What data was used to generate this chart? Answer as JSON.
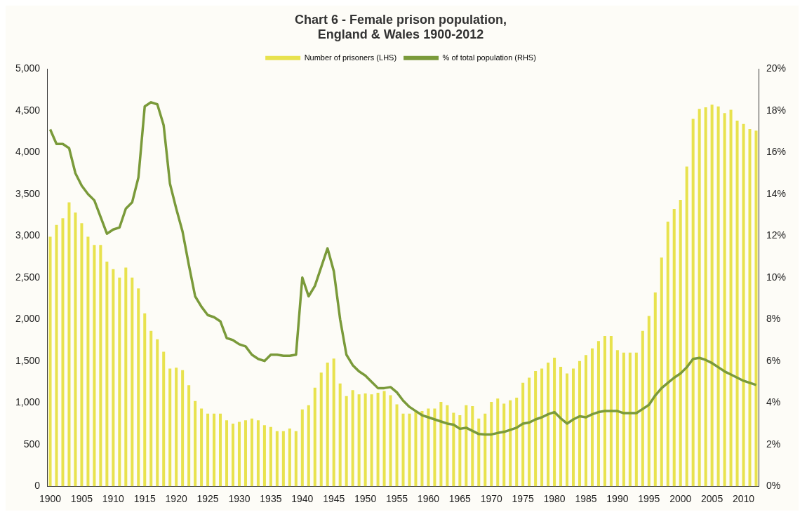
{
  "chart_data": {
    "type": "bar",
    "title": "Chart 6 - Female prison population,\nEngland & Wales 1900-2012",
    "categories": [
      "1900",
      null,
      null,
      null,
      null,
      "1905",
      null,
      null,
      null,
      null,
      "1910",
      null,
      null,
      null,
      null,
      "1915",
      null,
      null,
      null,
      null,
      "1920",
      null,
      null,
      null,
      null,
      "1925",
      null,
      null,
      null,
      null,
      "1930",
      null,
      null,
      null,
      null,
      "1935",
      null,
      null,
      null,
      null,
      "1940",
      null,
      null,
      null,
      null,
      "1945",
      null,
      null,
      null,
      null,
      "1950",
      null,
      null,
      null,
      null,
      "1955",
      null,
      null,
      null,
      null,
      "1960",
      null,
      null,
      null,
      null,
      "1965",
      null,
      null,
      null,
      null,
      "1970",
      null,
      null,
      null,
      null,
      "1975",
      null,
      null,
      null,
      null,
      "1980",
      null,
      null,
      null,
      null,
      "1985",
      null,
      null,
      null,
      null,
      "1990",
      null,
      null,
      null,
      null,
      "1995",
      null,
      null,
      null,
      null,
      "2000",
      null,
      null,
      null,
      null,
      "2005",
      null,
      null,
      null,
      null,
      "2010",
      null,
      null
    ],
    "series": [
      {
        "name": "Number of prisoners (LHS)",
        "color": "#e8e24e",
        "values": [
          2990,
          3130,
          3210,
          3400,
          3280,
          3150,
          2990,
          2890,
          2890,
          2690,
          2600,
          2500,
          2620,
          2500,
          2370,
          2070,
          1860,
          1760,
          1610,
          1410,
          1420,
          1390,
          1210,
          1020,
          930,
          870,
          870,
          870,
          790,
          750,
          770,
          790,
          810,
          790,
          730,
          710,
          660,
          660,
          690,
          660,
          920,
          970,
          1180,
          1360,
          1480,
          1530,
          1230,
          1080,
          1150,
          1100,
          1110,
          1100,
          1120,
          1140,
          1090,
          980,
          870,
          870,
          890,
          900,
          930,
          930,
          1010,
          970,
          880,
          850,
          970,
          960,
          810,
          870,
          1010,
          1050,
          990,
          1030,
          1060,
          1240,
          1300,
          1380,
          1410,
          1480,
          1540,
          1430,
          1350,
          1410,
          1500,
          1570,
          1650,
          1740,
          1800,
          1800,
          1630,
          1600,
          1600,
          1600,
          1860,
          2040,
          2320,
          2740,
          3170,
          3320,
          3430,
          3830,
          4400,
          4520,
          4540,
          4570,
          4550,
          4470,
          4510,
          4380,
          4340,
          4280,
          4260
        ]
      },
      {
        "name": "% of total population (RHS)",
        "type": "line",
        "axis": "y2",
        "color": "#7a9a3a",
        "values": [
          17.1,
          16.4,
          16.4,
          16.2,
          15.0,
          14.4,
          14.0,
          13.7,
          12.9,
          12.1,
          12.3,
          12.4,
          13.3,
          13.6,
          14.8,
          18.2,
          18.4,
          18.3,
          17.3,
          14.5,
          13.3,
          12.2,
          10.6,
          9.1,
          8.6,
          8.2,
          8.1,
          7.9,
          7.1,
          7.0,
          6.8,
          6.7,
          6.3,
          6.1,
          6.0,
          6.3,
          6.3,
          6.25,
          6.25,
          6.3,
          10.0,
          9.1,
          9.6,
          10.5,
          11.4,
          10.3,
          8.0,
          6.3,
          5.8,
          5.5,
          5.3,
          5.0,
          4.7,
          4.7,
          4.75,
          4.5,
          4.1,
          3.8,
          3.6,
          3.4,
          3.3,
          3.2,
          3.1,
          3.0,
          2.95,
          2.75,
          2.8,
          2.65,
          2.5,
          2.48,
          2.48,
          2.55,
          2.6,
          2.7,
          2.8,
          3.0,
          3.05,
          3.2,
          3.3,
          3.45,
          3.55,
          3.25,
          3.0,
          3.2,
          3.35,
          3.3,
          3.45,
          3.55,
          3.6,
          3.6,
          3.6,
          3.5,
          3.5,
          3.5,
          3.7,
          3.9,
          4.35,
          4.7,
          4.95,
          5.2,
          5.4,
          5.7,
          6.1,
          6.15,
          6.05,
          5.9,
          5.7,
          5.5,
          5.35,
          5.2,
          5.05,
          4.95,
          4.85
        ]
      }
    ],
    "ylim": [
      0,
      5000
    ],
    "yticks": [
      0,
      500,
      {
        "value": 1000,
        "label": "1,000"
      },
      {
        "value": 1500,
        "label": "1,500"
      },
      {
        "value": 2000,
        "label": "2,000"
      },
      {
        "value": 2500,
        "label": "2,500"
      },
      {
        "value": 3000,
        "label": "3,000"
      },
      {
        "value": 3500,
        "label": "3,500"
      },
      {
        "value": 4000,
        "label": "4,000"
      },
      {
        "value": 4500,
        "label": "4,500"
      },
      {
        "value": 5000,
        "label": "5,000"
      }
    ],
    "y2lim": [
      0,
      20
    ],
    "y2ticks": [
      {
        "value": 0,
        "label": "0%"
      },
      {
        "value": 2,
        "label": "2%"
      },
      {
        "value": 4,
        "label": "4%"
      },
      {
        "value": 6,
        "label": "6%"
      },
      {
        "value": 8,
        "label": "8%"
      },
      {
        "value": 10,
        "label": "10%"
      },
      {
        "value": 12,
        "label": "12%"
      },
      {
        "value": 14,
        "label": "14%"
      },
      {
        "value": 16,
        "label": "16%"
      },
      {
        "value": 18,
        "label": "18%"
      },
      {
        "value": 20,
        "label": "20%"
      }
    ],
    "grid": false,
    "legend": "top",
    "marker": "none"
  }
}
